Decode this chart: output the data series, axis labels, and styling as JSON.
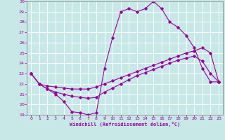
{
  "xlabel": "Windchill (Refroidissement éolien,°C)",
  "xlim": [
    -0.5,
    23.5
  ],
  "ylim": [
    19,
    30
  ],
  "yticks": [
    19,
    20,
    21,
    22,
    23,
    24,
    25,
    26,
    27,
    28,
    29,
    30
  ],
  "xticks": [
    0,
    1,
    2,
    3,
    4,
    5,
    6,
    7,
    8,
    9,
    10,
    11,
    12,
    13,
    14,
    15,
    16,
    17,
    18,
    19,
    20,
    21,
    22,
    23
  ],
  "background_color": "#c8e8e8",
  "grid_color": "#ffffff",
  "line_color": "#990099",
  "lines": [
    {
      "x": [
        0,
        1,
        2,
        3,
        4,
        5,
        6,
        7,
        8,
        9,
        10,
        11,
        12,
        13,
        14,
        15,
        16,
        17,
        18,
        19,
        20,
        21,
        22,
        23
      ],
      "y": [
        23,
        22,
        21.5,
        21,
        20.3,
        19.3,
        19.2,
        19,
        19.2,
        23.5,
        26.5,
        29,
        29.3,
        29,
        29.3,
        30,
        29.3,
        28,
        27.5,
        26.7,
        25.5,
        23.5,
        22.2,
        22.2
      ]
    },
    {
      "x": [
        0,
        1,
        2,
        3,
        4,
        5,
        6,
        7,
        8,
        9,
        10,
        11,
        12,
        13,
        14,
        15,
        16,
        17,
        18,
        19,
        20,
        21,
        22,
        23
      ],
      "y": [
        23,
        22,
        21.8,
        21.7,
        21.6,
        21.5,
        21.5,
        21.5,
        21.7,
        22.0,
        22.3,
        22.6,
        22.9,
        23.2,
        23.5,
        23.8,
        24.1,
        24.4,
        24.7,
        25.0,
        25.2,
        25.5,
        25.0,
        22.2
      ]
    },
    {
      "x": [
        0,
        1,
        2,
        3,
        4,
        5,
        6,
        7,
        8,
        9,
        10,
        11,
        12,
        13,
        14,
        15,
        16,
        17,
        18,
        19,
        20,
        21,
        22,
        23
      ],
      "y": [
        23,
        22,
        21.5,
        21.2,
        21.0,
        20.8,
        20.7,
        20.6,
        20.7,
        21.2,
        21.6,
        22.0,
        22.4,
        22.8,
        23.1,
        23.4,
        23.7,
        24.0,
        24.3,
        24.5,
        24.7,
        24.2,
        23.0,
        22.2
      ]
    }
  ],
  "marker": "D",
  "markersize": 1.8,
  "linewidth": 0.8
}
